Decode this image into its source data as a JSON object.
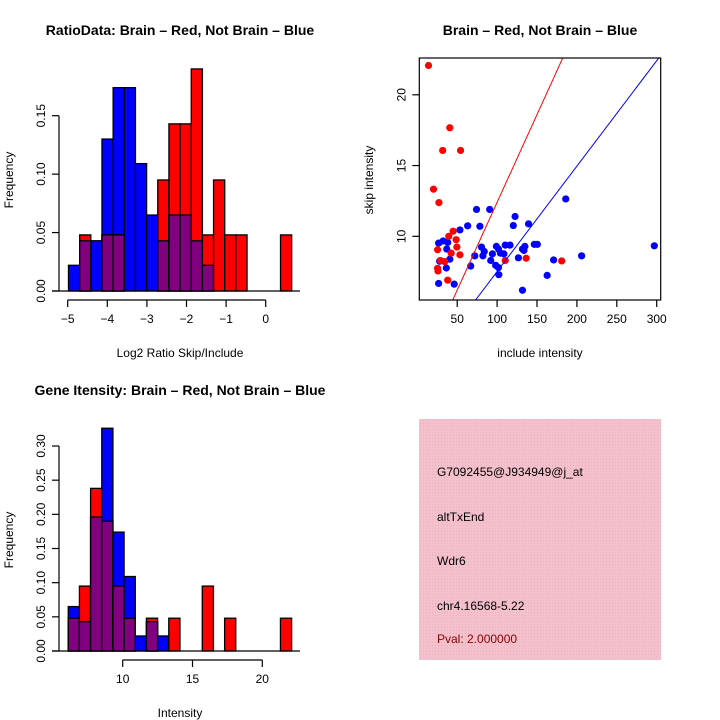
{
  "chart_data": [
    {
      "type": "bar",
      "title": "RatioData: Brain – Red, Not Brain – Blue",
      "xlabel": "Log2 Ratio Skip/Include",
      "ylabel": "Frequency",
      "bin_start": -4.98,
      "bin_width": 0.2818,
      "series": [
        {
          "name": "Not Brain",
          "color": "#0000ff",
          "values": [
            0.022,
            0.043,
            0.043,
            0.13,
            0.174,
            0.174,
            0.109,
            0.065,
            0.043,
            0.065,
            0.065,
            0.043,
            0.022,
            0,
            0,
            0,
            0,
            0,
            0,
            0
          ]
        },
        {
          "name": "Brain",
          "color": "#ff0000",
          "values": [
            0,
            0.048,
            0,
            0.048,
            0.048,
            0,
            0,
            0,
            0.095,
            0.143,
            0.143,
            0.19,
            0.048,
            0.095,
            0.048,
            0.048,
            0,
            0,
            0,
            0.048
          ]
        }
      ],
      "overlap_color": "#800080",
      "xticks": [
        -5,
        -4,
        -3,
        -2,
        -1,
        0
      ],
      "xtick_labels": [
        "−5",
        "−4",
        "−3",
        "−2",
        "−1",
        "0"
      ],
      "yticks": [
        0,
        0.05,
        0.1,
        0.15
      ],
      "ytick_labels": [
        "0.00",
        "0.05",
        "0.10",
        "0.15"
      ]
    },
    {
      "type": "scatter",
      "title": "Brain – Red, Not Brain – Blue",
      "xlabel": "include intensity",
      "ylabel": "skip intensity",
      "xlim": [
        2.5,
        305
      ],
      "ylim": [
        5.5,
        22.6
      ],
      "xticks": [
        50,
        100,
        150,
        200,
        250,
        300
      ],
      "xtick_labels": [
        "50",
        "100",
        "150",
        "200",
        "250",
        "300"
      ],
      "yticks": [
        10,
        15,
        20
      ],
      "ytick_labels": [
        "10",
        "15",
        "20"
      ],
      "series": [
        {
          "name": "Brain",
          "color": "#ff0000",
          "points": [
            [
              14,
              22.07
            ],
            [
              20.3,
              13.33
            ],
            [
              27.1,
              12.38
            ],
            [
              40.7,
              17.67
            ],
            [
              31.8,
              16.07
            ],
            [
              54.2,
              16.07
            ],
            [
              44.9,
              10.36
            ],
            [
              39.4,
              10.0
            ],
            [
              48.7,
              9.76
            ],
            [
              49.6,
              9.24
            ],
            [
              25.4,
              9.05
            ],
            [
              42.4,
              8.81
            ],
            [
              53.4,
              8.69
            ],
            [
              28.8,
              8.29
            ],
            [
              34.3,
              8.21
            ],
            [
              25.4,
              7.74
            ],
            [
              25.9,
              7.55
            ],
            [
              38.1,
              6.9
            ],
            [
              110.2,
              8.29
            ],
            [
              136.4,
              8.45
            ],
            [
              180.9,
              8.26
            ]
          ]
        },
        {
          "name": "Not Brain",
          "color": "#0000ff",
          "points": [
            [
              26.7,
              6.67
            ],
            [
              46.2,
              6.62
            ],
            [
              28.0,
              8.24
            ],
            [
              36.4,
              7.76
            ],
            [
              32.2,
              9.67
            ],
            [
              26.7,
              9.52
            ],
            [
              38.1,
              9.57
            ],
            [
              36.9,
              9.1
            ],
            [
              40.7,
              8.38
            ],
            [
              53.4,
              10.45
            ],
            [
              63.1,
              10.74
            ],
            [
              74.2,
              11.9
            ],
            [
              90.7,
              11.9
            ],
            [
              78.4,
              10.71
            ],
            [
              122.5,
              11.4
            ],
            [
              120.3,
              10.76
            ],
            [
              139.4,
              10.88
            ],
            [
              186.0,
              12.64
            ],
            [
              297.0,
              9.33
            ],
            [
              205.9,
              8.62
            ],
            [
              170.8,
              8.33
            ],
            [
              162.7,
              7.24
            ],
            [
              131.8,
              6.19
            ],
            [
              72.0,
              8.62
            ],
            [
              66.9,
              7.9
            ],
            [
              80.5,
              9.24
            ],
            [
              83.9,
              8.93
            ],
            [
              82.2,
              8.62
            ],
            [
              92.0,
              8.29
            ],
            [
              94.1,
              8.76
            ],
            [
              99.1,
              9.29
            ],
            [
              101.7,
              9.1
            ],
            [
              104.2,
              8.81
            ],
            [
              108.5,
              8.76
            ],
            [
              110.2,
              9.38
            ],
            [
              116.2,
              9.38
            ],
            [
              98.2,
              7.95
            ],
            [
              101.7,
              7.79
            ],
            [
              102.1,
              7.29
            ],
            [
              126.7,
              8.48
            ],
            [
              131.8,
              9.1
            ],
            [
              134.8,
              9.29
            ],
            [
              133.6,
              9.0
            ],
            [
              146.6,
              9.43
            ],
            [
              150.4,
              9.43
            ]
          ]
        }
      ],
      "lines": [
        {
          "name": "Brain fit",
          "color": "#ff0000",
          "intercept": 0,
          "slope": 0.124
        },
        {
          "name": "Not Brain fit",
          "color": "#0000ff",
          "intercept": 0.06,
          "slope": 0.0745
        }
      ]
    },
    {
      "type": "bar",
      "title": "Gene Itensity: Brain – Red, Not Brain – Blue",
      "xlabel": "Intensity",
      "ylabel": "Frequency",
      "bin_start": 6.1,
      "bin_width": 0.8,
      "series": [
        {
          "name": "Not Brain",
          "color": "#0000ff",
          "values": [
            0.065,
            0.043,
            0.196,
            0.326,
            0.174,
            0.109,
            0.022,
            0.043,
            0.022,
            0,
            0,
            0,
            0,
            0,
            0,
            0,
            0,
            0,
            0,
            0
          ]
        },
        {
          "name": "Brain",
          "color": "#ff0000",
          "values": [
            0.048,
            0.095,
            0.238,
            0.19,
            0.095,
            0.048,
            0,
            0.048,
            0,
            0.048,
            0,
            0,
            0.095,
            0,
            0.048,
            0,
            0,
            0,
            0,
            0.048
          ]
        }
      ],
      "overlap_color": "#800080",
      "xticks": [
        10,
        15,
        20
      ],
      "xtick_labels": [
        "10",
        "15",
        "20"
      ],
      "yticks": [
        0,
        0.05,
        0.1,
        0.15,
        0.2,
        0.25,
        0.3
      ],
      "ytick_labels": [
        "0.00",
        "0.05",
        "0.10",
        "0.15",
        "0.20",
        "0.25",
        "0.30"
      ]
    }
  ],
  "info_panel": {
    "background": "#f4c0cb",
    "probe_id": "G7092455@J934949@j_at",
    "event_type": "altTxEnd",
    "gene": "Wdr6",
    "location": "chr4.16568-5.22",
    "pval": "Pval: 2.000000",
    "pval_color": "#8b0000"
  }
}
